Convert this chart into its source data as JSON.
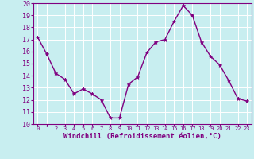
{
  "x": [
    0,
    1,
    2,
    3,
    4,
    5,
    6,
    7,
    8,
    9,
    10,
    11,
    12,
    13,
    14,
    15,
    16,
    17,
    18,
    19,
    20,
    21,
    22,
    23
  ],
  "y": [
    17.2,
    15.8,
    14.2,
    13.7,
    12.5,
    12.9,
    12.5,
    12.0,
    10.5,
    10.5,
    13.3,
    13.9,
    15.9,
    16.8,
    17.0,
    18.5,
    19.8,
    19.0,
    16.8,
    15.6,
    14.9,
    13.6,
    12.1,
    11.9
  ],
  "line_color": "#800080",
  "marker": "*",
  "marker_size": 3.5,
  "bg_color": "#c8eef0",
  "grid_color": "#ffffff",
  "xlabel": "Windchill (Refroidissement éolien,°C)",
  "xlabel_color": "#800080",
  "tick_color": "#800080",
  "ylim": [
    10,
    20
  ],
  "xlim": [
    -0.5,
    23.5
  ],
  "yticks": [
    10,
    11,
    12,
    13,
    14,
    15,
    16,
    17,
    18,
    19,
    20
  ],
  "xticks": [
    0,
    1,
    2,
    3,
    4,
    5,
    6,
    7,
    8,
    9,
    10,
    11,
    12,
    13,
    14,
    15,
    16,
    17,
    18,
    19,
    20,
    21,
    22,
    23
  ],
  "ytick_fontsize": 6.0,
  "xtick_fontsize": 5.0,
  "xlabel_fontsize": 6.5,
  "linewidth": 1.0,
  "grid_linewidth": 0.7,
  "spine_linewidth": 0.8
}
